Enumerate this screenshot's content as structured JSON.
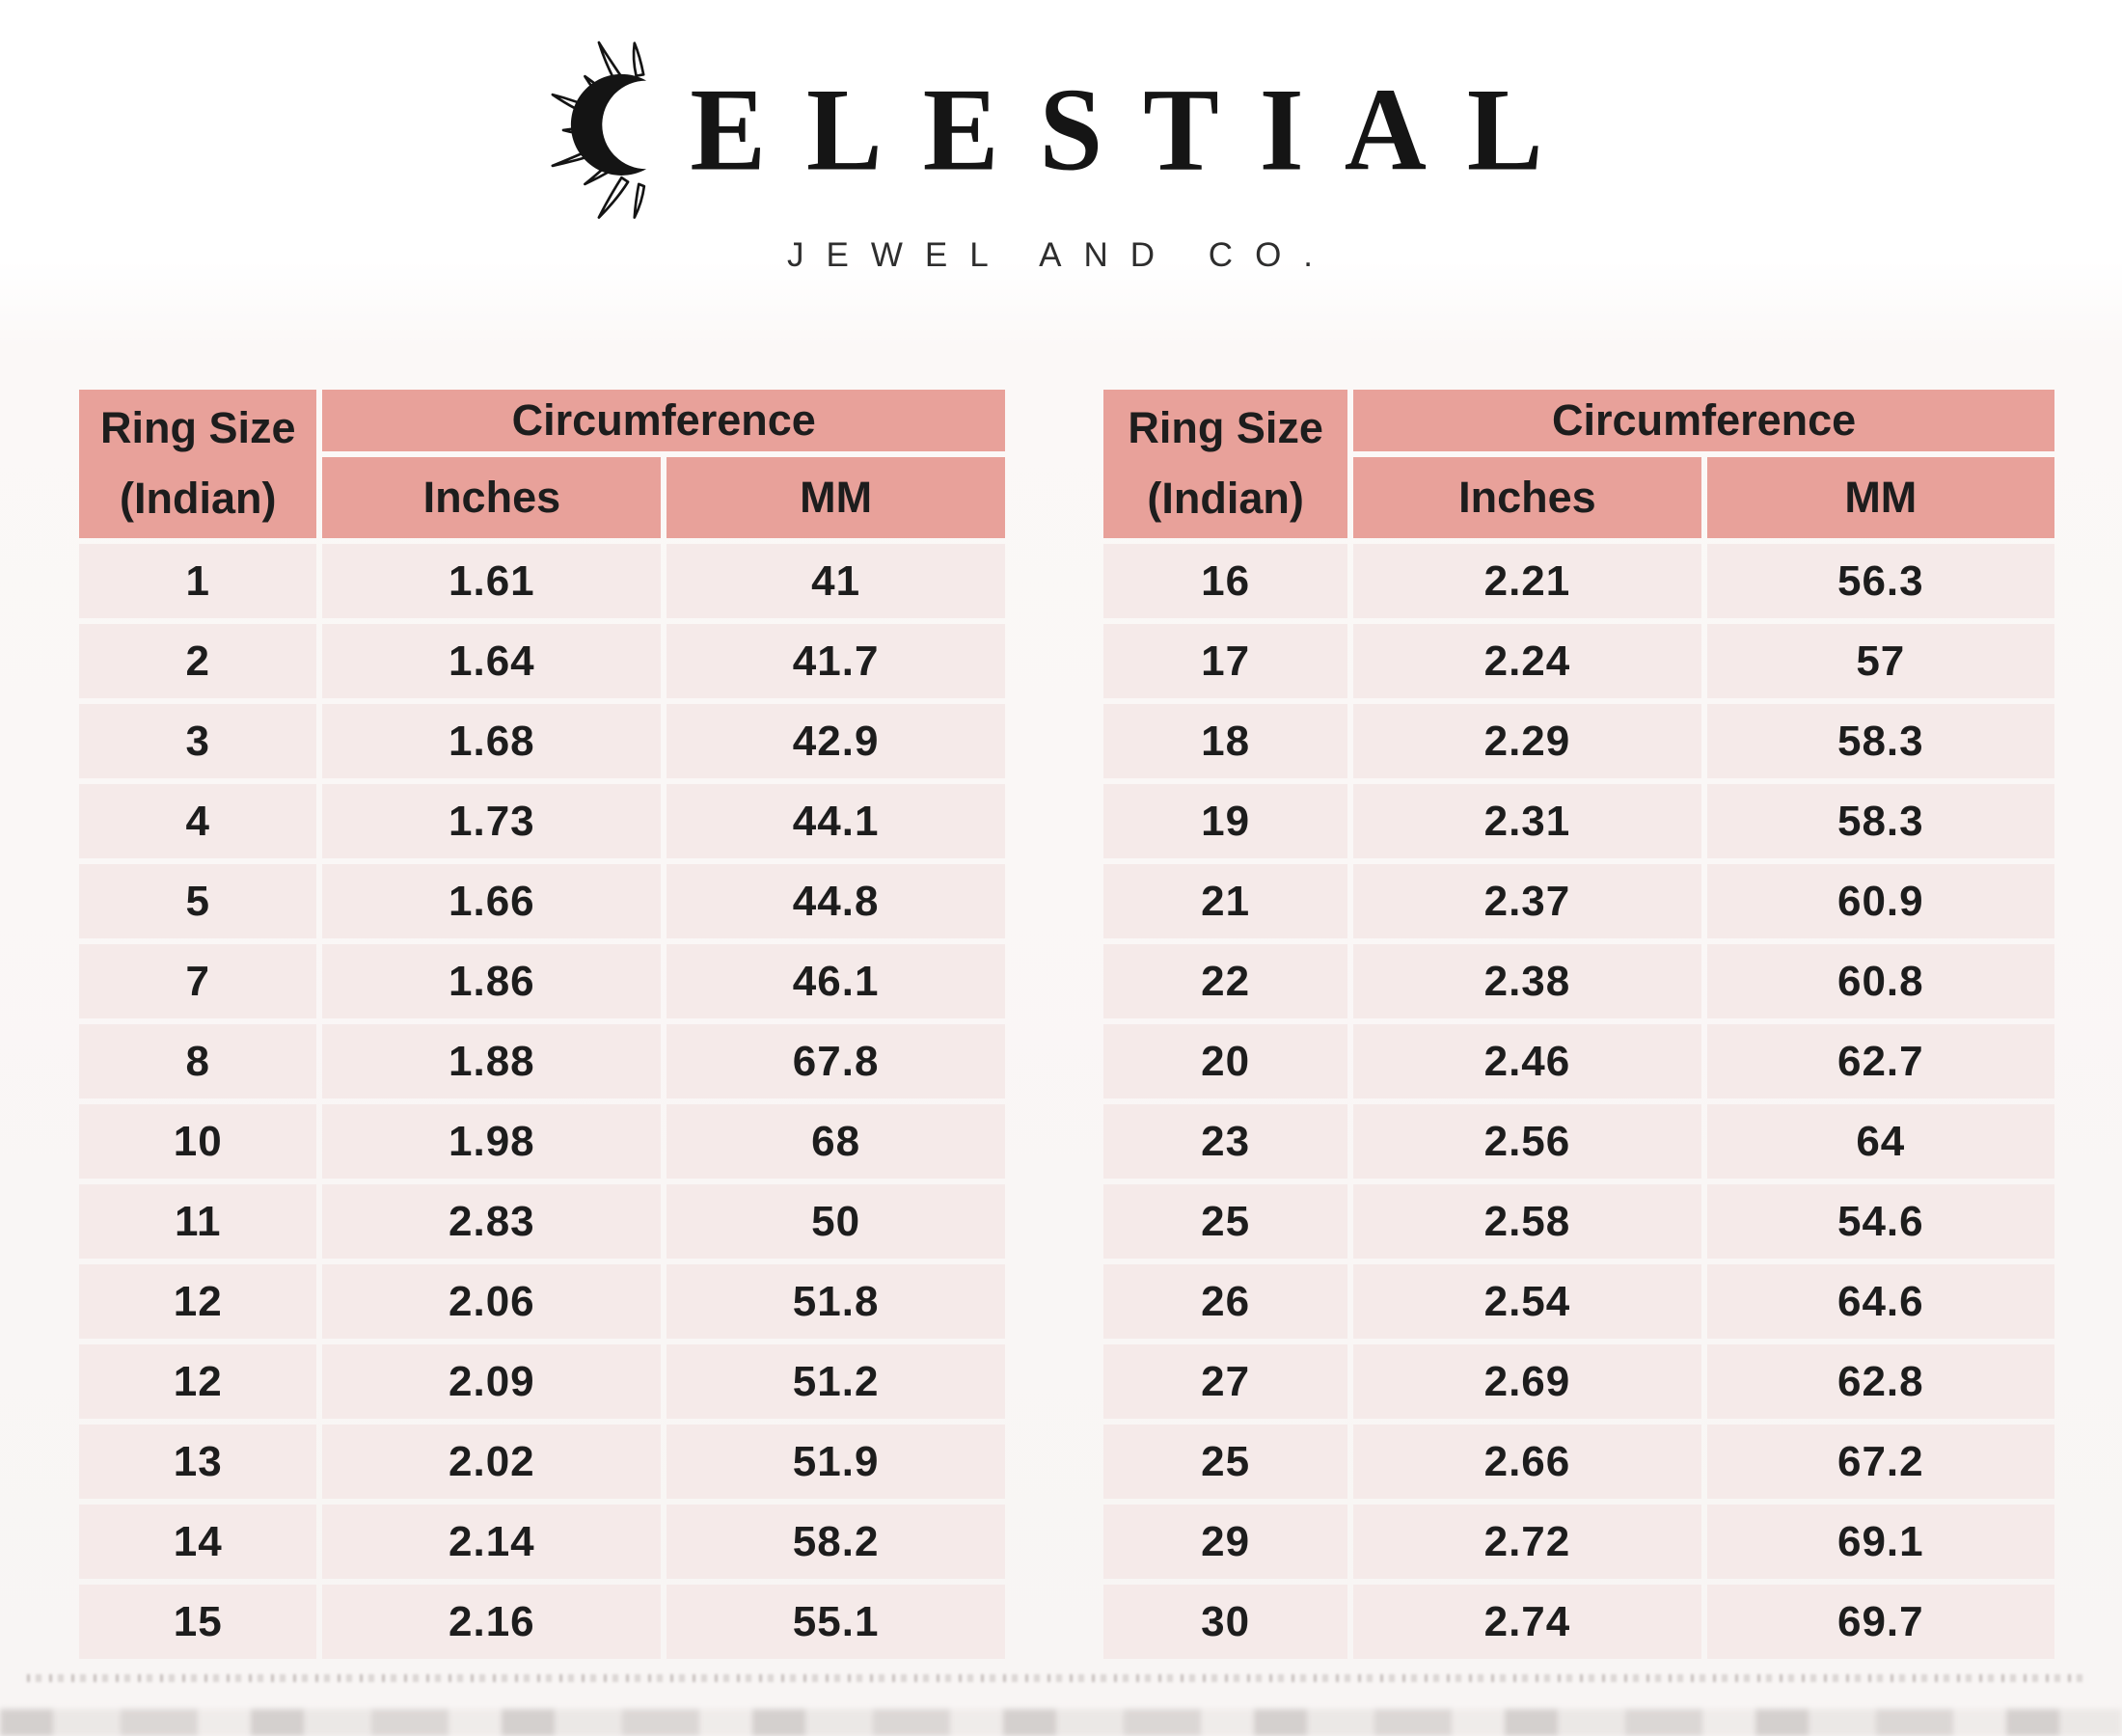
{
  "logo": {
    "wordmark": "ELESTIAL",
    "tagline": "JEWEL AND CO.",
    "icon": "sun-crescent-icon"
  },
  "colors": {
    "header_cell": "#e8a19a",
    "data_cell": "#f5eae9",
    "separator": "#ffffff",
    "text": "#1d1d1d"
  },
  "tables": [
    {
      "header": {
        "ring_size_line1": "Ring Size",
        "ring_size_line2": "(Indian)",
        "group": "Circumference",
        "sub1": "Inches",
        "sub2": "MM"
      },
      "rows": [
        [
          "1",
          "1.61",
          "41"
        ],
        [
          "2",
          "1.64",
          "41.7"
        ],
        [
          "3",
          "1.68",
          "42.9"
        ],
        [
          "4",
          "1.73",
          "44.1"
        ],
        [
          "5",
          "1.66",
          "44.8"
        ],
        [
          "7",
          "1.86",
          "46.1"
        ],
        [
          "8",
          "1.88",
          "67.8"
        ],
        [
          "10",
          "1.98",
          "68"
        ],
        [
          "11",
          "2.83",
          "50"
        ],
        [
          "12",
          "2.06",
          "51.8"
        ],
        [
          "12",
          "2.09",
          "51.2"
        ],
        [
          "13",
          "2.02",
          "51.9"
        ],
        [
          "14",
          "2.14",
          "58.2"
        ],
        [
          "15",
          "2.16",
          "55.1"
        ]
      ]
    },
    {
      "header": {
        "ring_size_line1": "Ring Size",
        "ring_size_line2": "(Indian)",
        "group": "Circumference",
        "sub1": "Inches",
        "sub2": "MM"
      },
      "rows": [
        [
          "16",
          "2.21",
          "56.3"
        ],
        [
          "17",
          "2.24",
          "57"
        ],
        [
          "18",
          "2.29",
          "58.3"
        ],
        [
          "19",
          "2.31",
          "58.3"
        ],
        [
          "21",
          "2.37",
          "60.9"
        ],
        [
          "22",
          "2.38",
          "60.8"
        ],
        [
          "20",
          "2.46",
          "62.7"
        ],
        [
          "23",
          "2.56",
          "64"
        ],
        [
          "25",
          "2.58",
          "54.6"
        ],
        [
          "26",
          "2.54",
          "64.6"
        ],
        [
          "27",
          "2.69",
          "62.8"
        ],
        [
          "25",
          "2.66",
          "67.2"
        ],
        [
          "29",
          "2.72",
          "69.1"
        ],
        [
          "30",
          "2.74",
          "69.7"
        ]
      ]
    }
  ]
}
